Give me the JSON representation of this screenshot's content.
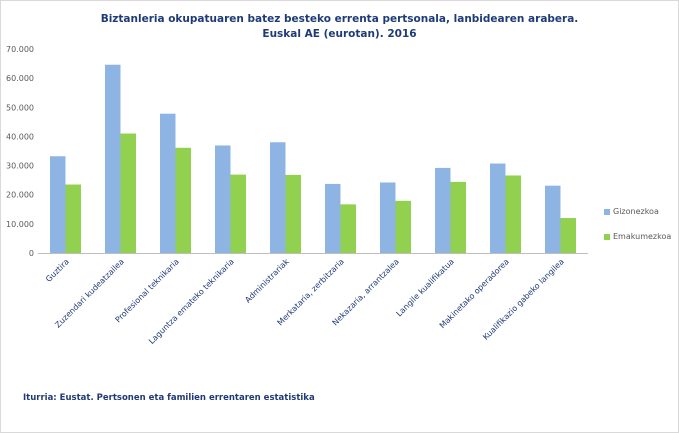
{
  "chart_data": {
    "type": "bar",
    "title_lines": [
      "Biztanleria okupatuaren batez besteko errenta pertsonala, lanbidearen arabera.",
      "Euskal AE (eurotan). 2016"
    ],
    "categories": [
      "Guztira",
      "Zuzendari kudeatzailea",
      "Profesional teknikaria",
      "Laguntza emateko teknikaria",
      "Administrariak",
      "Merkataria, zerbitzaria",
      "Nekazaria, arrantzalea",
      "Langile kualifikatua",
      "Makinetako operadorea",
      "Kualifikazio gabeko langilea"
    ],
    "series": [
      {
        "name": "Gizonezkoa",
        "color": "#8eb4e3",
        "values": [
          33200,
          64600,
          47800,
          36900,
          38000,
          23700,
          24200,
          29200,
          30700,
          23100
        ]
      },
      {
        "name": "Emakumezkoa",
        "color": "#92d050",
        "values": [
          23500,
          41000,
          36100,
          26900,
          26800,
          16700,
          17900,
          24400,
          26600,
          12000
        ]
      }
    ],
    "ylim": [
      0,
      70000
    ],
    "yticks": [
      0,
      10000,
      20000,
      30000,
      40000,
      50000,
      60000,
      70000
    ],
    "ytick_labels": [
      "0",
      "10.000",
      "20.000",
      "30.000",
      "40.000",
      "50.000",
      "60.000",
      "70.000"
    ],
    "legend_position": "right",
    "source": "Iturria: Eustat. Pertsonen eta familien errentaren estatistika"
  }
}
